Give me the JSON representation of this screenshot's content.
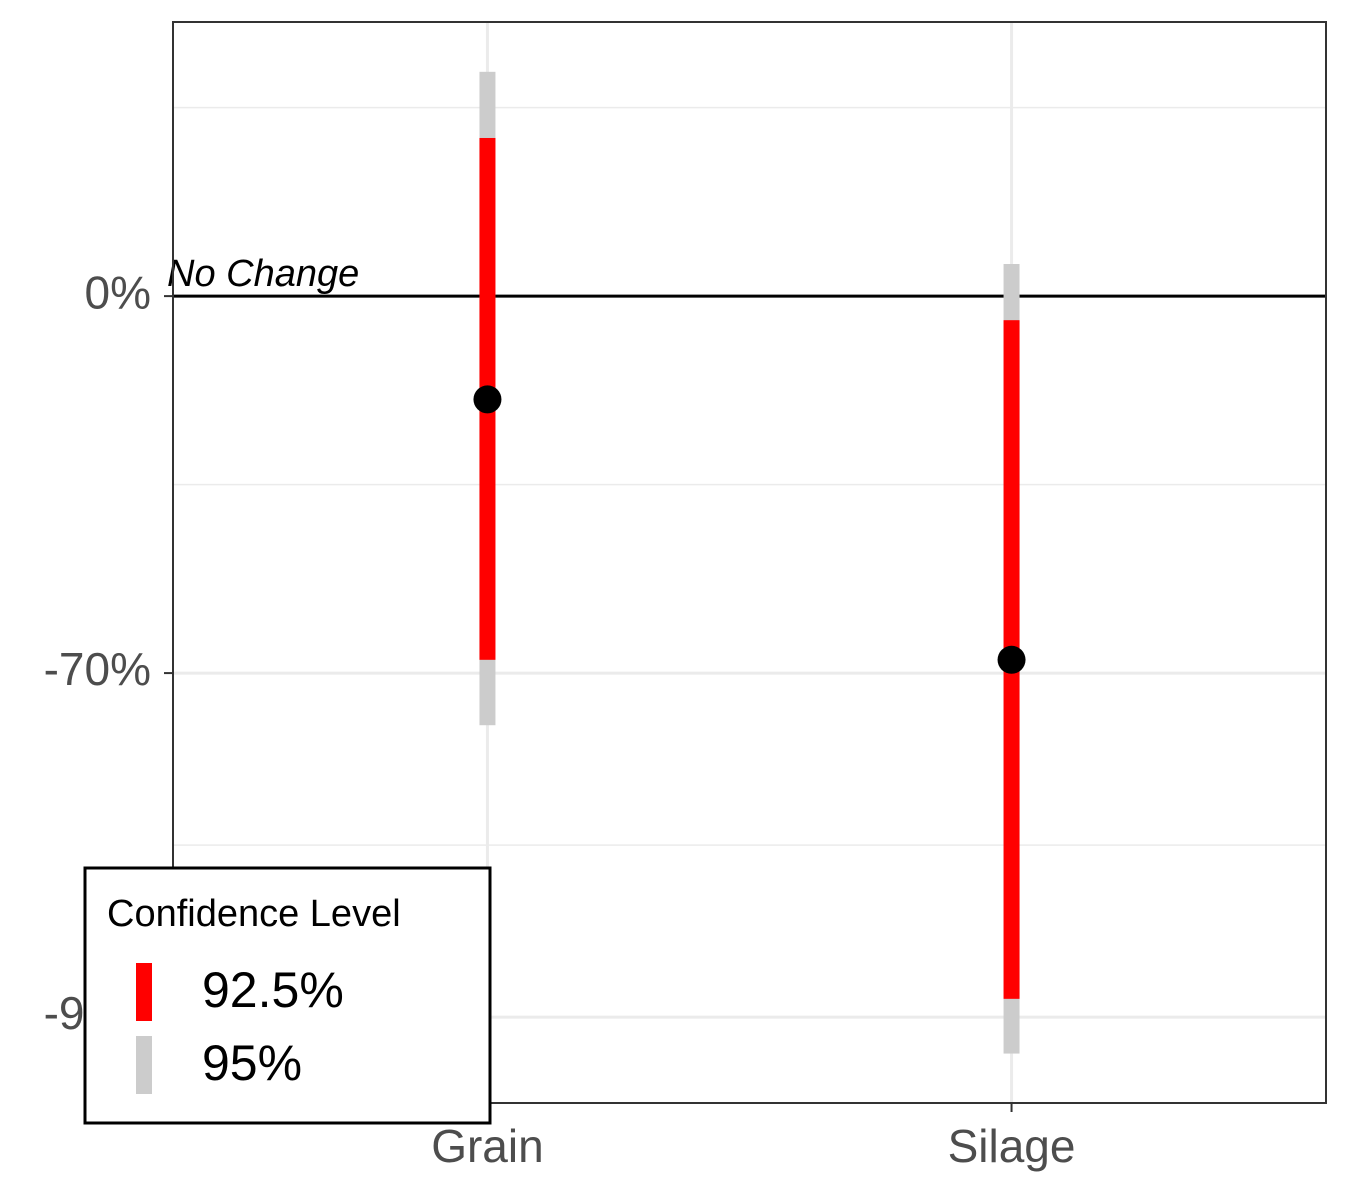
{
  "chart_data": {
    "type": "interval",
    "categories": [
      "Grain",
      "Silage"
    ],
    "values": [
      -28.1,
      -68.7
    ],
    "point_color": "#000000",
    "series": [
      {
        "name": "92.5%",
        "color": "#ff0000",
        "lower": [
          -68.7,
          -89.4
        ],
        "upper": [
          65.7,
          -7.4
        ]
      },
      {
        "name": "95%",
        "color": "#cccccc",
        "lower": [
          -74.6,
          -91.1
        ],
        "upper": [
          104.7,
          10.8
        ]
      }
    ],
    "yscale": "log-ratio",
    "ylim": [
      -92.4,
      140
    ],
    "yticks": [
      {
        "value": 0,
        "label": "0%"
      },
      {
        "value": -70,
        "label": "-70%"
      },
      {
        "value": -90,
        "label": "-90%"
      }
    ],
    "grid": true,
    "reference_line": {
      "value": 0,
      "label": "No Change"
    },
    "legend_title": "Confidence Level",
    "legend_position": "bottom-left"
  }
}
